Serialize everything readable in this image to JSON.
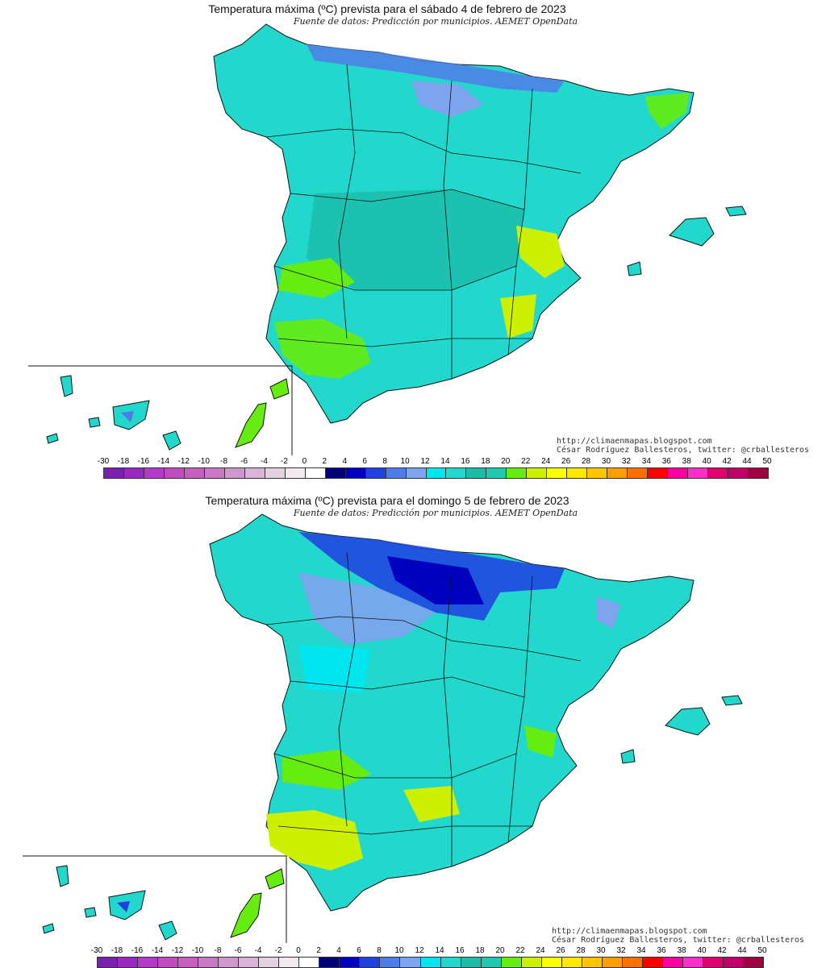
{
  "maps": [
    {
      "title": "Temperatura máxima (ºC) prevista para el sábado 4 de febrero de 2023",
      "subtitle": "Fuente de datos: Predicción por municipios. AEMET OpenData",
      "credit_url": "http://climaenmapas.blogspot.com",
      "credit_author": "César Rodríguez Ballesteros, twitter: @crballesteros"
    },
    {
      "title": "Temperatura máxima (ºC) prevista para el domingo 5 de febrero de 2023",
      "subtitle": "Fuente de datos: Predicción por municipios. AEMET OpenData",
      "credit_url": "http://climaenmapas.blogspot.com",
      "credit_author": "César Rodríguez Ballesteros, twitter: @crballesteros"
    }
  ],
  "legend": {
    "labels": [
      "-30",
      "-18",
      "-16",
      "-14",
      "-12",
      "-10",
      "-8",
      "-6",
      "-4",
      "-2",
      "0",
      "2",
      "4",
      "6",
      "8",
      "10",
      "12",
      "14",
      "16",
      "18",
      "20",
      "22",
      "24",
      "26",
      "28",
      "30",
      "32",
      "34",
      "36",
      "38",
      "40",
      "42",
      "44",
      "50"
    ],
    "colors": [
      "#7a1fb0",
      "#9a28c2",
      "#b43acb",
      "#c24bbf",
      "#c660be",
      "#c87bc4",
      "#cf98cc",
      "#d9b4d6",
      "#e4d2e2",
      "#f2eaf1",
      "#ffffff",
      "#00007a",
      "#0000c0",
      "#2040e0",
      "#4f7ce8",
      "#7ea4ee",
      "#00e6ee",
      "#22d8cc",
      "#1cbca8",
      "#20c8b0",
      "#66ec10",
      "#ccf000",
      "#ffff00",
      "#ffe800",
      "#ffc600",
      "#ffa000",
      "#ff7000",
      "#ff0000",
      "#ff00a0",
      "#ff2ec8",
      "#e0006e",
      "#c00068",
      "#a00040",
      "#800020"
    ]
  }
}
